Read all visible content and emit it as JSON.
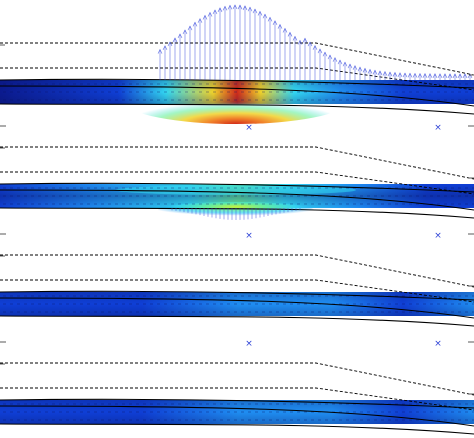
{
  "figure": {
    "panel_count": 4,
    "colormap": [
      "#0b1a8f",
      "#0f3fd6",
      "#1f8df2",
      "#33d8f2",
      "#66f09c",
      "#c9f03a",
      "#f1d32a",
      "#f07a1e",
      "#d22a1a"
    ],
    "colors": {
      "background": "#ffffff",
      "dashed_outline": "#000000",
      "solid_outline": "#000000",
      "vector_arrows": "#3a4bdc",
      "marker": "#2c41d6",
      "tick": "#5a5a5a"
    },
    "marker_glyph": "×",
    "panels": [
      {
        "label": "panel-1",
        "has_load_vectors": true,
        "load_side": "top"
      },
      {
        "label": "panel-2",
        "has_load_vectors": true,
        "load_side": "bottom"
      },
      {
        "label": "panel-3",
        "has_load_vectors": false,
        "load_side": "none"
      },
      {
        "label": "panel-4",
        "has_load_vectors": false,
        "load_side": "none"
      }
    ]
  }
}
